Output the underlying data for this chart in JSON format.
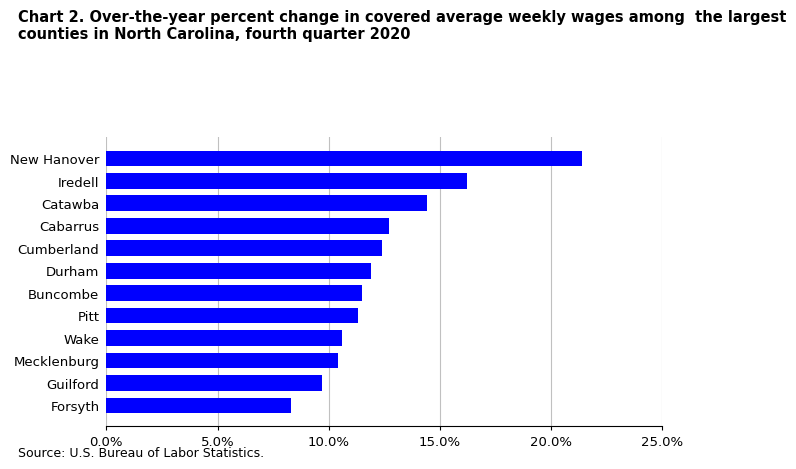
{
  "title_line1": "Chart 2. Over-the-year percent change in covered average weekly wages among  the largest",
  "title_line2": "counties in North Carolina, fourth quarter 2020",
  "categories": [
    "Forsyth",
    "Guilford",
    "Mecklenburg",
    "Wake",
    "Pitt",
    "Buncombe",
    "Durham",
    "Cumberland",
    "Cabarrus",
    "Catawba",
    "Iredell",
    "New Hanover"
  ],
  "values": [
    0.083,
    0.097,
    0.104,
    0.106,
    0.113,
    0.115,
    0.119,
    0.124,
    0.127,
    0.144,
    0.162,
    0.214
  ],
  "bar_color": "#0000FF",
  "xlim": [
    0,
    0.25
  ],
  "xticks": [
    0.0,
    0.05,
    0.1,
    0.15,
    0.2,
    0.25
  ],
  "xtick_labels": [
    "0.0%",
    "5.0%",
    "10.0%",
    "15.0%",
    "20.0%",
    "25.0%"
  ],
  "source": "Source: U.S. Bureau of Labor Statistics.",
  "title_fontsize": 10.5,
  "tick_fontsize": 9.5,
  "source_fontsize": 9,
  "background_color": "#ffffff",
  "bar_height": 0.7
}
